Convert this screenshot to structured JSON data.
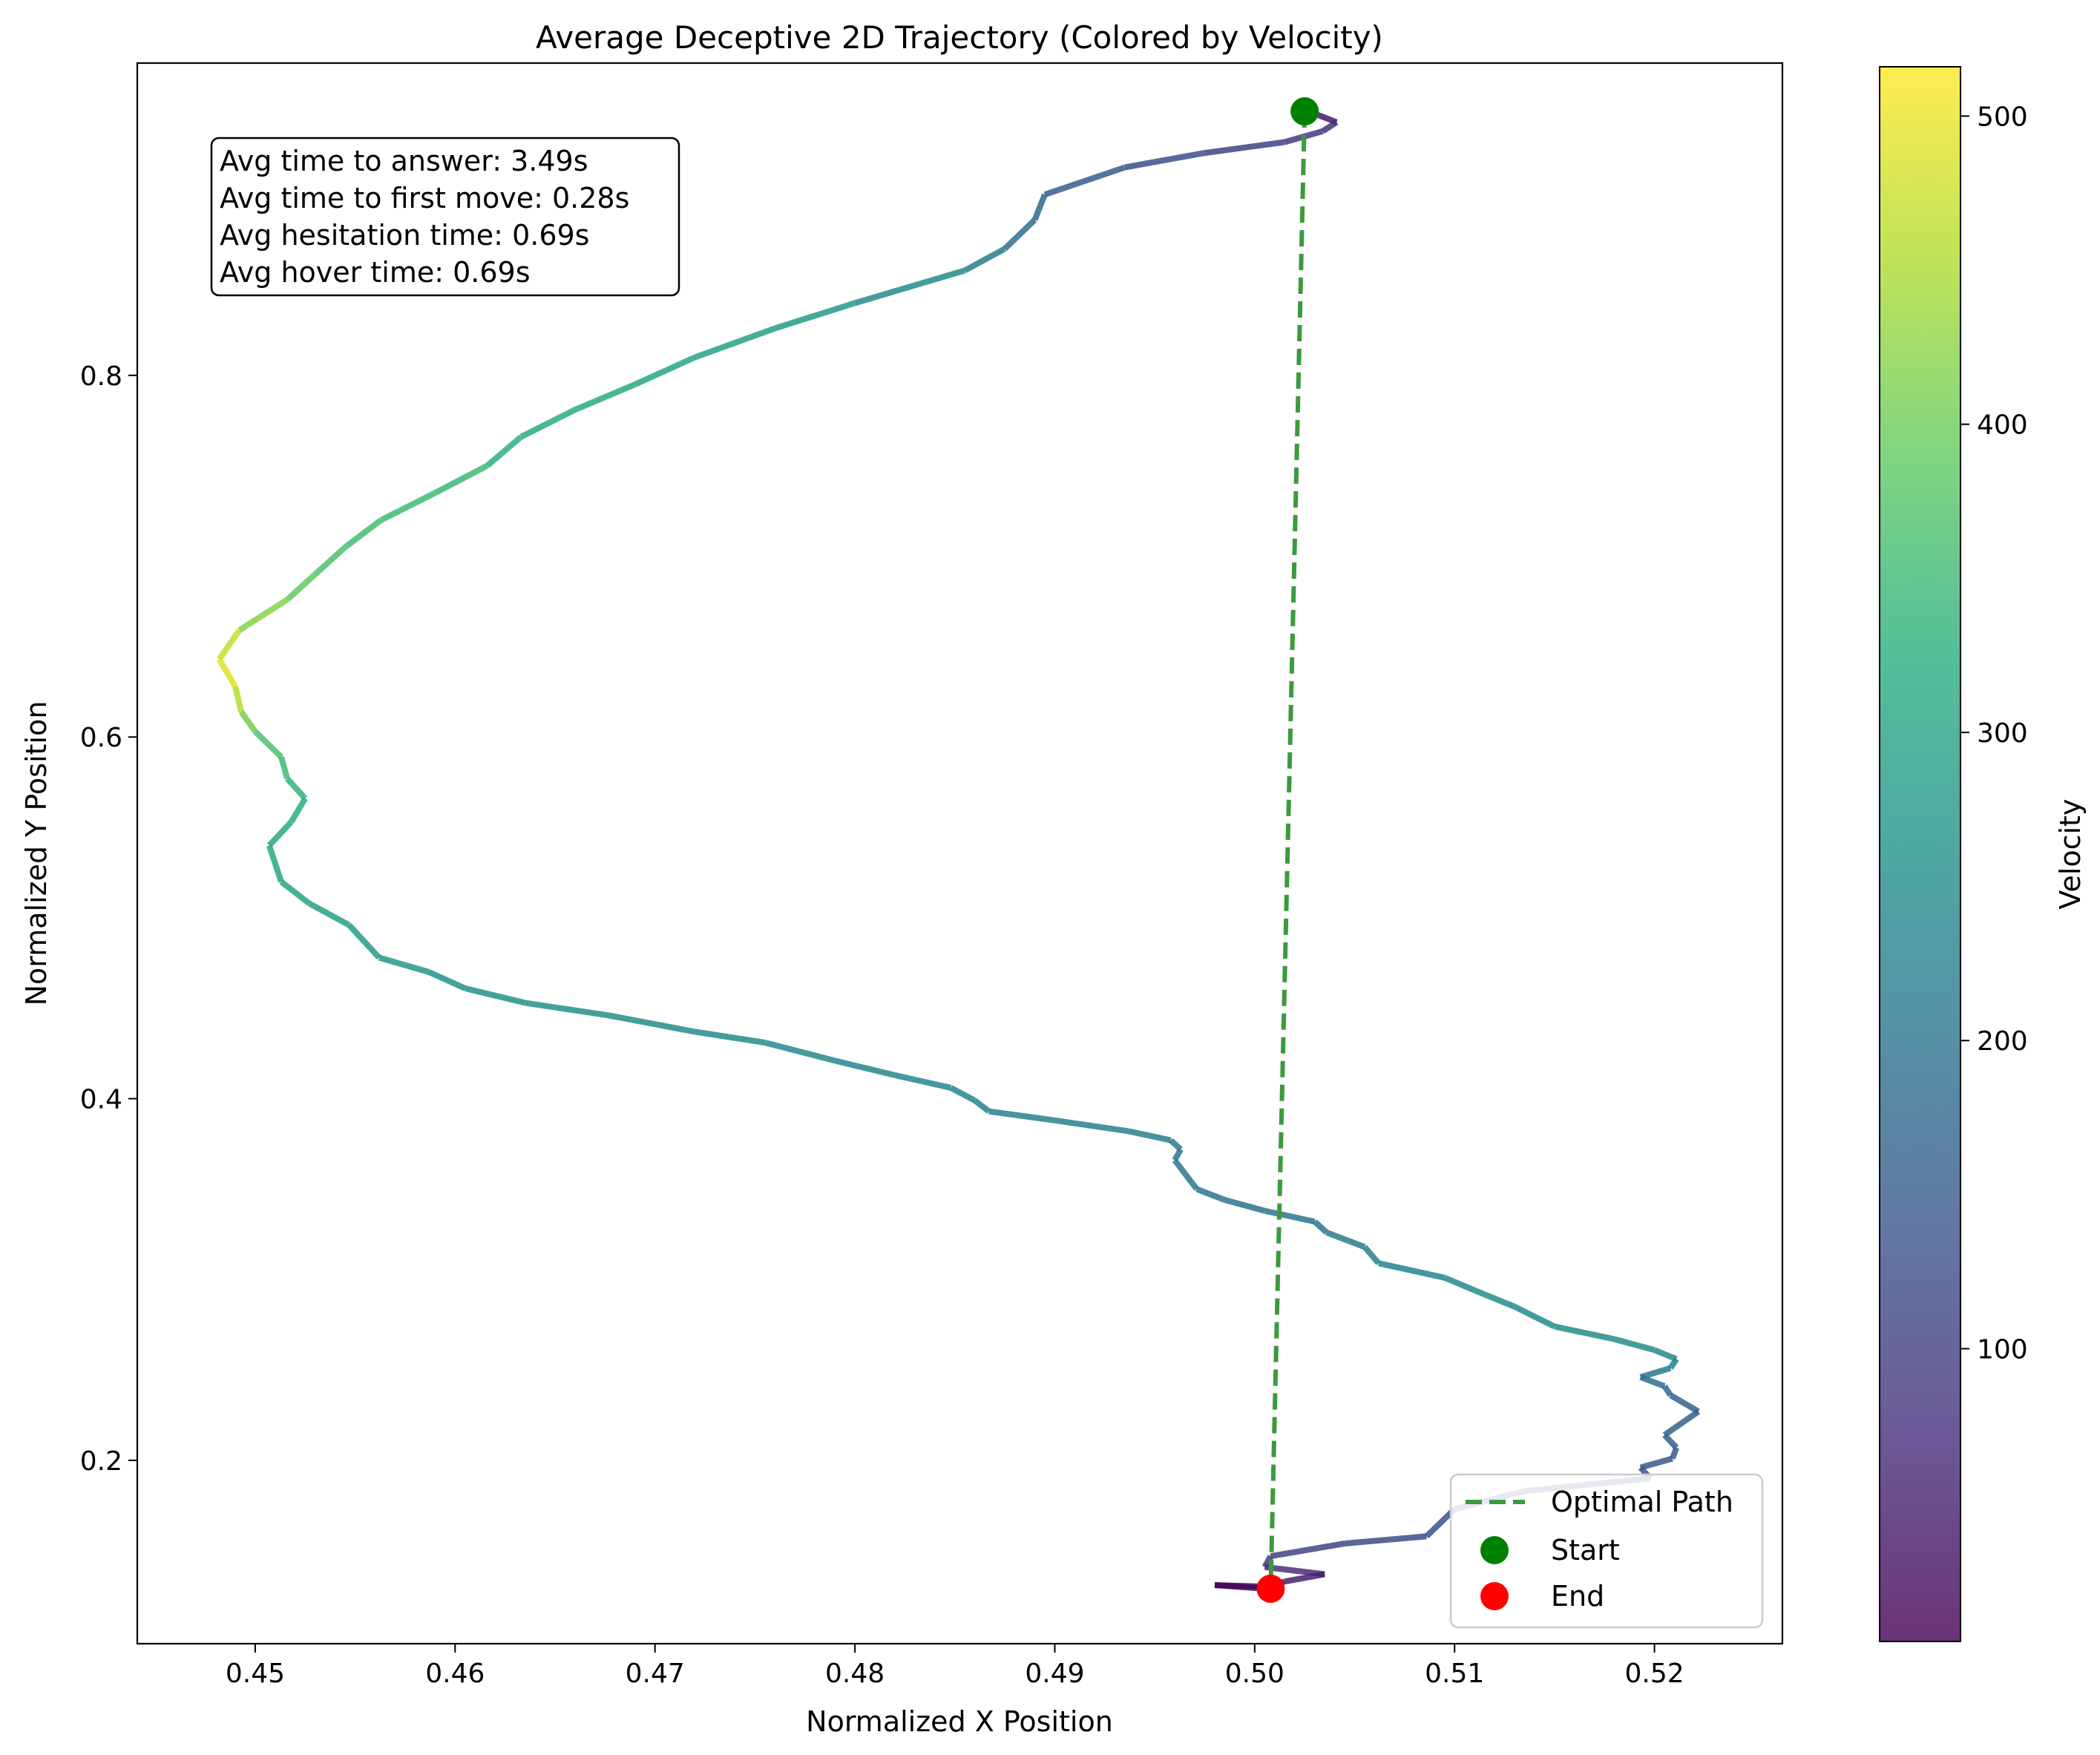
{
  "chart_data": {
    "type": "line",
    "title": "Average Deceptive 2D Trajectory (Colored by Velocity)",
    "xlabel": "Normalized X Position",
    "ylabel": "Normalized Y Position",
    "xlim": [
      0.4441,
      0.5264
    ],
    "ylim": [
      0.0986,
      0.9727
    ],
    "xticks": [
      0.45,
      0.46,
      0.47,
      0.48,
      0.49,
      0.5,
      0.51,
      0.52
    ],
    "yticks": [
      0.2,
      0.4,
      0.6,
      0.8
    ],
    "xtick_labels": [
      "0.45",
      "0.46",
      "0.47",
      "0.48",
      "0.49",
      "0.50",
      "0.51",
      "0.52"
    ],
    "ytick_labels": [
      "0.2",
      "0.4",
      "0.6",
      "0.8"
    ],
    "grid": false,
    "legend_position": "lower-right",
    "series": [
      {
        "name": "Trajectory",
        "kind": "velocity-colored line",
        "points": [
          {
            "x": 0.5027,
            "y": 0.946,
            "v": 20
          },
          {
            "x": 0.5041,
            "y": 0.94,
            "v": 60
          },
          {
            "x": 0.5034,
            "y": 0.935,
            "v": 80
          },
          {
            "x": 0.5015,
            "y": 0.929,
            "v": 100
          },
          {
            "x": 0.4975,
            "y": 0.923,
            "v": 110
          },
          {
            "x": 0.4935,
            "y": 0.915,
            "v": 140
          },
          {
            "x": 0.4895,
            "y": 0.9,
            "v": 170
          },
          {
            "x": 0.489,
            "y": 0.886,
            "v": 180
          },
          {
            "x": 0.4875,
            "y": 0.87,
            "v": 200
          },
          {
            "x": 0.4855,
            "y": 0.858,
            "v": 230
          },
          {
            "x": 0.48,
            "y": 0.84,
            "v": 270
          },
          {
            "x": 0.476,
            "y": 0.826,
            "v": 290
          },
          {
            "x": 0.472,
            "y": 0.81,
            "v": 300
          },
          {
            "x": 0.469,
            "y": 0.795,
            "v": 310
          },
          {
            "x": 0.466,
            "y": 0.781,
            "v": 320
          },
          {
            "x": 0.4633,
            "y": 0.766,
            "v": 320
          },
          {
            "x": 0.4616,
            "y": 0.75,
            "v": 340
          },
          {
            "x": 0.459,
            "y": 0.735,
            "v": 350
          },
          {
            "x": 0.4563,
            "y": 0.72,
            "v": 355
          },
          {
            "x": 0.4545,
            "y": 0.705,
            "v": 360
          },
          {
            "x": 0.453,
            "y": 0.69,
            "v": 380
          },
          {
            "x": 0.4516,
            "y": 0.676,
            "v": 400
          },
          {
            "x": 0.4492,
            "y": 0.659,
            "v": 440
          },
          {
            "x": 0.4482,
            "y": 0.643,
            "v": 500
          },
          {
            "x": 0.449,
            "y": 0.628,
            "v": 480
          },
          {
            "x": 0.4493,
            "y": 0.614,
            "v": 430
          },
          {
            "x": 0.45,
            "y": 0.603,
            "v": 380
          },
          {
            "x": 0.4513,
            "y": 0.589,
            "v": 360
          },
          {
            "x": 0.4516,
            "y": 0.577,
            "v": 340
          },
          {
            "x": 0.4525,
            "y": 0.566,
            "v": 330
          },
          {
            "x": 0.4518,
            "y": 0.553,
            "v": 320
          },
          {
            "x": 0.4507,
            "y": 0.54,
            "v": 310
          },
          {
            "x": 0.4513,
            "y": 0.52,
            "v": 310
          },
          {
            "x": 0.4527,
            "y": 0.508,
            "v": 300
          },
          {
            "x": 0.4547,
            "y": 0.496,
            "v": 290
          },
          {
            "x": 0.4562,
            "y": 0.478,
            "v": 280
          },
          {
            "x": 0.4587,
            "y": 0.47,
            "v": 270
          },
          {
            "x": 0.4605,
            "y": 0.461,
            "v": 260
          },
          {
            "x": 0.4635,
            "y": 0.453,
            "v": 260
          },
          {
            "x": 0.4677,
            "y": 0.446,
            "v": 255
          },
          {
            "x": 0.472,
            "y": 0.437,
            "v": 250
          },
          {
            "x": 0.4755,
            "y": 0.431,
            "v": 250
          },
          {
            "x": 0.479,
            "y": 0.421,
            "v": 240
          },
          {
            "x": 0.482,
            "y": 0.413,
            "v": 240
          },
          {
            "x": 0.4848,
            "y": 0.406,
            "v": 235
          },
          {
            "x": 0.486,
            "y": 0.399,
            "v": 235
          },
          {
            "x": 0.4867,
            "y": 0.393,
            "v": 230
          },
          {
            "x": 0.49,
            "y": 0.388,
            "v": 230
          },
          {
            "x": 0.4937,
            "y": 0.382,
            "v": 225
          },
          {
            "x": 0.4958,
            "y": 0.377,
            "v": 220
          },
          {
            "x": 0.4963,
            "y": 0.372,
            "v": 210
          },
          {
            "x": 0.496,
            "y": 0.366,
            "v": 210
          },
          {
            "x": 0.4971,
            "y": 0.35,
            "v": 200
          },
          {
            "x": 0.4985,
            "y": 0.344,
            "v": 200
          },
          {
            "x": 0.5005,
            "y": 0.338,
            "v": 200
          },
          {
            "x": 0.503,
            "y": 0.332,
            "v": 200
          },
          {
            "x": 0.5036,
            "y": 0.326,
            "v": 210
          },
          {
            "x": 0.5055,
            "y": 0.318,
            "v": 220
          },
          {
            "x": 0.5062,
            "y": 0.309,
            "v": 230
          },
          {
            "x": 0.5095,
            "y": 0.301,
            "v": 240
          },
          {
            "x": 0.511,
            "y": 0.294,
            "v": 250
          },
          {
            "x": 0.513,
            "y": 0.285,
            "v": 250
          },
          {
            "x": 0.515,
            "y": 0.274,
            "v": 250
          },
          {
            "x": 0.518,
            "y": 0.267,
            "v": 250
          },
          {
            "x": 0.52,
            "y": 0.261,
            "v": 250
          },
          {
            "x": 0.5211,
            "y": 0.256,
            "v": 240
          },
          {
            "x": 0.5208,
            "y": 0.251,
            "v": 220
          },
          {
            "x": 0.5193,
            "y": 0.246,
            "v": 200
          },
          {
            "x": 0.5205,
            "y": 0.241,
            "v": 180
          },
          {
            "x": 0.5208,
            "y": 0.236,
            "v": 170
          },
          {
            "x": 0.5222,
            "y": 0.227,
            "v": 160
          },
          {
            "x": 0.5205,
            "y": 0.214,
            "v": 160
          },
          {
            "x": 0.5211,
            "y": 0.207,
            "v": 150
          },
          {
            "x": 0.5209,
            "y": 0.201,
            "v": 150
          },
          {
            "x": 0.5193,
            "y": 0.196,
            "v": 140
          },
          {
            "x": 0.5198,
            "y": 0.19,
            "v": 140
          },
          {
            "x": 0.517,
            "y": 0.187,
            "v": 140
          },
          {
            "x": 0.5135,
            "y": 0.183,
            "v": 140
          },
          {
            "x": 0.51,
            "y": 0.173,
            "v": 140
          },
          {
            "x": 0.5086,
            "y": 0.158,
            "v": 130
          },
          {
            "x": 0.5045,
            "y": 0.154,
            "v": 120
          },
          {
            "x": 0.5008,
            "y": 0.147,
            "v": 100
          },
          {
            "x": 0.5005,
            "y": 0.141,
            "v": 80
          },
          {
            "x": 0.5035,
            "y": 0.137,
            "v": 60
          },
          {
            "x": 0.5015,
            "y": 0.133,
            "v": 40
          },
          {
            "x": 0.5005,
            "y": 0.129,
            "v": 20
          },
          {
            "x": 0.498,
            "y": 0.131,
            "v": 15
          },
          {
            "x": 0.501,
            "y": 0.13,
            "v": 10
          },
          {
            "x": 0.501,
            "y": 0.129,
            "v": 5
          }
        ]
      },
      {
        "name": "Optimal Path",
        "kind": "dashed line",
        "color": "#3c9a3c",
        "points": [
          {
            "x": 0.5025,
            "y": 0.946
          },
          {
            "x": 0.5008,
            "y": 0.129
          }
        ]
      },
      {
        "name": "Start",
        "kind": "scatter",
        "color": "#008000",
        "points": [
          {
            "x": 0.5025,
            "y": 0.946
          }
        ]
      },
      {
        "name": "End",
        "kind": "scatter",
        "color": "#ff0000",
        "points": [
          {
            "x": 0.5008,
            "y": 0.129
          }
        ]
      }
    ],
    "colorbar": {
      "label": "Velocity",
      "colormap": "viridis",
      "range": [
        5,
        516
      ],
      "ticks": [
        100,
        200,
        300,
        400,
        500
      ],
      "tick_labels": [
        "100",
        "200",
        "300",
        "400",
        "500"
      ]
    },
    "annotations": [
      "Avg time to answer: 3.49s",
      "Avg time to first move: 0.28s",
      "Avg hesitation time: 0.69s",
      "Avg hover time: 0.69s"
    ]
  }
}
